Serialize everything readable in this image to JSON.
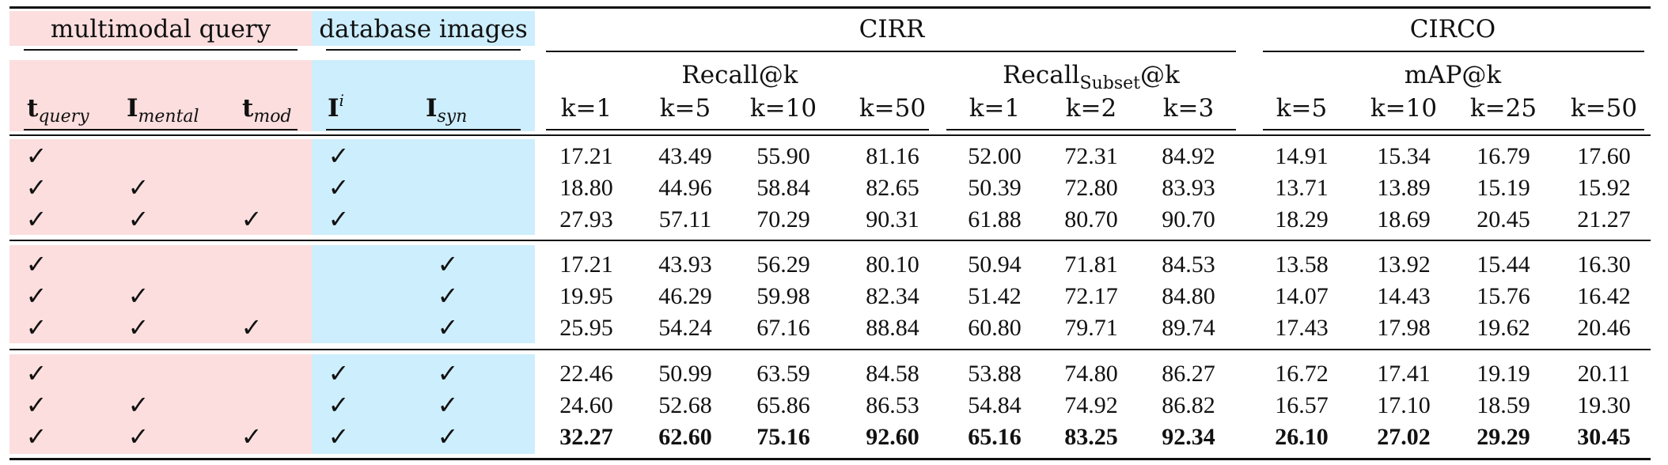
{
  "headers": {
    "multimodal_query": "multimodal query",
    "database_images": "database images",
    "cirr": "CIRR",
    "circo": "CIRCO",
    "recall": "Recall@k",
    "recall_subset_main": "Recall",
    "recall_subset_sub": "Subset",
    "recall_subset_suffix": "@k",
    "map": "mAP@k"
  },
  "query_columns": [
    {
      "base": "t",
      "sub": "query"
    },
    {
      "base": "I",
      "sub": "mental"
    },
    {
      "base": "t",
      "sub": "mod"
    }
  ],
  "db_columns": [
    {
      "base": "I",
      "sup": "i"
    },
    {
      "base": "I",
      "sub": "syn"
    }
  ],
  "k_labels": {
    "recall": [
      "k=1",
      "k=5",
      "k=10",
      "k=50"
    ],
    "recall_subset": [
      "k=1",
      "k=2",
      "k=3"
    ],
    "map": [
      "k=5",
      "k=10",
      "k=25",
      "k=50"
    ]
  },
  "check_symbol": "✓",
  "rows": [
    {
      "checks": [
        true,
        false,
        false,
        true,
        false
      ],
      "values": [
        "17.21",
        "43.49",
        "55.90",
        "81.16",
        "52.00",
        "72.31",
        "84.92",
        "14.91",
        "15.34",
        "16.79",
        "17.60"
      ],
      "bold": false
    },
    {
      "checks": [
        true,
        true,
        false,
        true,
        false
      ],
      "values": [
        "18.80",
        "44.96",
        "58.84",
        "82.65",
        "50.39",
        "72.80",
        "83.93",
        "13.71",
        "13.89",
        "15.19",
        "15.92"
      ],
      "bold": false
    },
    {
      "checks": [
        true,
        true,
        true,
        true,
        false
      ],
      "values": [
        "27.93",
        "57.11",
        "70.29",
        "90.31",
        "61.88",
        "80.70",
        "90.70",
        "18.29",
        "18.69",
        "20.45",
        "21.27"
      ],
      "bold": false
    },
    {
      "checks": [
        true,
        false,
        false,
        false,
        true
      ],
      "values": [
        "17.21",
        "43.93",
        "56.29",
        "80.10",
        "50.94",
        "71.81",
        "84.53",
        "13.58",
        "13.92",
        "15.44",
        "16.30"
      ],
      "bold": false
    },
    {
      "checks": [
        true,
        true,
        false,
        false,
        true
      ],
      "values": [
        "19.95",
        "46.29",
        "59.98",
        "82.34",
        "51.42",
        "72.17",
        "84.80",
        "14.07",
        "14.43",
        "15.76",
        "16.42"
      ],
      "bold": false
    },
    {
      "checks": [
        true,
        true,
        true,
        false,
        true
      ],
      "values": [
        "25.95",
        "54.24",
        "67.16",
        "88.84",
        "60.80",
        "79.71",
        "89.74",
        "17.43",
        "17.98",
        "19.62",
        "20.46"
      ],
      "bold": false
    },
    {
      "checks": [
        true,
        false,
        false,
        true,
        true
      ],
      "values": [
        "22.46",
        "50.99",
        "63.59",
        "84.58",
        "53.88",
        "74.80",
        "86.27",
        "16.72",
        "17.41",
        "19.19",
        "20.11"
      ],
      "bold": false
    },
    {
      "checks": [
        true,
        true,
        false,
        true,
        true
      ],
      "values": [
        "24.60",
        "52.68",
        "65.86",
        "86.53",
        "54.84",
        "74.92",
        "86.82",
        "16.57",
        "17.10",
        "18.59",
        "19.30"
      ],
      "bold": false
    },
    {
      "checks": [
        true,
        true,
        true,
        true,
        true
      ],
      "values": [
        "32.27",
        "62.60",
        "75.16",
        "92.60",
        "65.16",
        "83.25",
        "92.34",
        "26.10",
        "27.02",
        "29.29",
        "30.45"
      ],
      "bold": true
    }
  ]
}
